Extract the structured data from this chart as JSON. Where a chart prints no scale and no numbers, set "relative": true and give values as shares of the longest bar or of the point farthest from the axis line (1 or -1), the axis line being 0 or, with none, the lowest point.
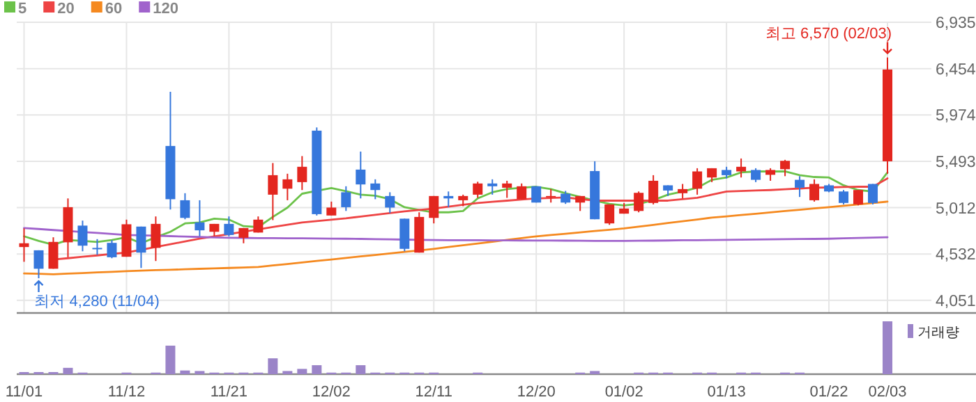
{
  "chart_data": [
    {
      "type": "candlestick",
      "categories": [
        "11/01",
        null,
        null,
        null,
        null,
        null,
        null,
        "11/12",
        null,
        null,
        null,
        null,
        null,
        null,
        "11/21",
        null,
        null,
        null,
        null,
        null,
        null,
        "12/02",
        null,
        null,
        null,
        null,
        null,
        null,
        "12/11",
        null,
        null,
        null,
        null,
        null,
        null,
        "12/20",
        null,
        null,
        null,
        null,
        null,
        "01/02",
        null,
        null,
        null,
        null,
        null,
        null,
        "01/13",
        null,
        null,
        null,
        null,
        null,
        null,
        "01/22",
        null,
        null,
        null,
        "02/03"
      ],
      "ohlc": [
        [
          4604,
          4797,
          4451,
          4643
        ],
        [
          4570,
          4570,
          4280,
          4379
        ],
        [
          4379,
          4705,
          4379,
          4657
        ],
        [
          4653,
          5108,
          4498,
          5017
        ],
        [
          4826,
          4878,
          4560,
          4618
        ],
        [
          4595,
          4686,
          4523,
          4585
        ],
        [
          4647,
          4676,
          4488,
          4498
        ],
        [
          4503,
          4888,
          4503,
          4840
        ],
        [
          4816,
          4816,
          4387,
          4546
        ],
        [
          4595,
          4921,
          4459,
          4844
        ],
        [
          5652,
          6214,
          4993,
          5100
        ],
        [
          5089,
          5162,
          4892,
          4906
        ],
        [
          4859,
          5089,
          4715,
          4777
        ],
        [
          4762,
          4844,
          4715,
          4844
        ],
        [
          4844,
          4921,
          4715,
          4729
        ],
        [
          4700,
          4801,
          4643,
          4801
        ],
        [
          4754,
          4921,
          4754,
          4888
        ],
        [
          5147,
          5475,
          4883,
          5349
        ],
        [
          5209,
          5364,
          5089,
          5306
        ],
        [
          5277,
          5547,
          5195,
          5436
        ],
        [
          5811,
          5844,
          4931,
          4945
        ],
        [
          4931,
          5075,
          4931,
          5013
        ],
        [
          5172,
          5234,
          4978,
          5017
        ],
        [
          5407,
          5594,
          5108,
          5253
        ],
        [
          5263,
          5306,
          5100,
          5195
        ],
        [
          5133,
          5172,
          4955,
          5013
        ],
        [
          4898,
          4898,
          4560,
          4585
        ],
        [
          4546,
          4964,
          4546,
          4916
        ],
        [
          4906,
          5133,
          4849,
          5133
        ],
        [
          5133,
          5180,
          5017,
          5108
        ],
        [
          5089,
          5147,
          5027,
          5133
        ],
        [
          5147,
          5281,
          5114,
          5263
        ],
        [
          5263,
          5306,
          5147,
          5234
        ],
        [
          5219,
          5291,
          5114,
          5263
        ],
        [
          5100,
          5263,
          5100,
          5234
        ],
        [
          5234,
          5234,
          5065,
          5065
        ],
        [
          5124,
          5205,
          5065,
          5133
        ],
        [
          5157,
          5186,
          5051,
          5065
        ],
        [
          5065,
          5133,
          4978,
          5133
        ],
        [
          5392,
          5493,
          4892,
          4892
        ],
        [
          4849,
          5046,
          4834,
          5046
        ],
        [
          4950,
          5061,
          4950,
          5003
        ],
        [
          4978,
          5180,
          4964,
          5166
        ],
        [
          5061,
          5349,
          5046,
          5291
        ],
        [
          5244,
          5244,
          5133,
          5190
        ],
        [
          5162,
          5258,
          5108,
          5205
        ],
        [
          5209,
          5421,
          5147,
          5388
        ],
        [
          5325,
          5421,
          5277,
          5421
        ],
        [
          5403,
          5436,
          5316,
          5349
        ],
        [
          5388,
          5522,
          5325,
          5436
        ],
        [
          5403,
          5421,
          5277,
          5301
        ],
        [
          5353,
          5421,
          5291,
          5403
        ],
        [
          5411,
          5508,
          5339,
          5498
        ],
        [
          5301,
          5339,
          5123,
          5219
        ],
        [
          5089,
          5306,
          5075,
          5258
        ],
        [
          5244,
          5258,
          5172,
          5180
        ],
        [
          5180,
          5195,
          5046,
          5061
        ],
        [
          5046,
          5195,
          5036,
          5195
        ],
        [
          5258,
          5258,
          5046,
          5061
        ],
        [
          5493,
          6570,
          5364,
          6445
        ]
      ],
      "colors": [
        "#e3261f",
        "#3677dc",
        "#e3261f",
        "#e3261f",
        "#3677dc",
        "#3677dc",
        "#3677dc",
        "#e3261f",
        "#3677dc",
        "#e3261f",
        "#3677dc",
        "#3677dc",
        "#3677dc",
        "#e3261f",
        "#3677dc",
        "#e3261f",
        "#e3261f",
        "#e3261f",
        "#e3261f",
        "#e3261f",
        "#3677dc",
        "#e3261f",
        "#3677dc",
        "#3677dc",
        "#3677dc",
        "#3677dc",
        "#3677dc",
        "#e3261f",
        "#e3261f",
        "#3677dc",
        "#e3261f",
        "#e3261f",
        "#3677dc",
        "#e3261f",
        "#e3261f",
        "#3677dc",
        "#e3261f",
        "#3677dc",
        "#e3261f",
        "#3677dc",
        "#e3261f",
        "#e3261f",
        "#e3261f",
        "#e3261f",
        "#3677dc",
        "#e3261f",
        "#e3261f",
        "#e3261f",
        "#3677dc",
        "#e3261f",
        "#3677dc",
        "#e3261f",
        "#e3261f",
        "#3677dc",
        "#e3261f",
        "#3677dc",
        "#3677dc",
        "#e3261f",
        "#3677dc",
        "#e3261f"
      ],
      "series": [
        {
          "name": "5",
          "type": "line",
          "color": "#6cc24a",
          "values": [
            4715,
            4667,
            4628,
            4676,
            4667,
            4657,
            4676,
            4705,
            4643,
            4705,
            4762,
            4849,
            4859,
            4898,
            4888,
            4820,
            4811,
            4916,
            5013,
            5157,
            5186,
            5215,
            5183,
            5147,
            5137,
            5100,
            5017,
            4989,
            4964,
            4964,
            4978,
            5108,
            5172,
            5205,
            5219,
            5229,
            5205,
            5162,
            5123,
            5085,
            5051,
            5036,
            5051,
            5089,
            5147,
            5180,
            5219,
            5301,
            5325,
            5378,
            5388,
            5388,
            5388,
            5349,
            5330,
            5325,
            5244,
            5195,
            5180,
            5378
          ]
        },
        {
          "name": "20",
          "type": "line",
          "color": "#ee4444",
          "values": [
            null,
            null,
            4474,
            4488,
            4503,
            4517,
            4532,
            4546,
            4575,
            4604,
            4633,
            4662,
            4690,
            4714,
            4738,
            4763,
            4787,
            4811,
            4835,
            4859,
            4873,
            4888,
            4902,
            4920,
            4938,
            4956,
            4974,
            4989,
            5003,
            5022,
            5042,
            5061,
            5073,
            5085,
            5097,
            5108,
            5113,
            5118,
            5101,
            5085,
            5085,
            5085,
            5085,
            5085,
            5085,
            5100,
            5114,
            5147,
            5180,
            5185,
            5190,
            5195,
            5203,
            5211,
            5219,
            5222,
            5226,
            5229,
            5229,
            5316
          ]
        },
        {
          "name": "60",
          "type": "line",
          "color": "#f5891f",
          "values": [
            4330,
            4326,
            4321,
            4328,
            4334,
            4341,
            4347,
            4354,
            4359,
            4364,
            4368,
            4373,
            4378,
            4383,
            4387,
            4392,
            4397,
            4413,
            4428,
            4444,
            4460,
            4475,
            4491,
            4507,
            4522,
            4538,
            4554,
            4569,
            4585,
            4604,
            4622,
            4641,
            4659,
            4678,
            4696,
            4715,
            4729,
            4742,
            4756,
            4770,
            4783,
            4797,
            4816,
            4834,
            4853,
            4872,
            4890,
            4909,
            4922,
            4936,
            4949,
            4963,
            4977,
            4990,
            5004,
            5017,
            5032,
            5046,
            5061,
            5075
          ]
        },
        {
          "name": "120",
          "type": "line",
          "color": "#a063cc",
          "values": [
            4801,
            4791,
            4780,
            4770,
            4760,
            4750,
            4739,
            4729,
            4725,
            4721,
            4717,
            4712,
            4708,
            4704,
            4700,
            4699,
            4697,
            4696,
            4695,
            4694,
            4692,
            4691,
            4690,
            4688,
            4685,
            4683,
            4681,
            4678,
            4676,
            4675,
            4675,
            4674,
            4673,
            4673,
            4672,
            4671,
            4671,
            4670,
            4669,
            4668,
            4668,
            4667,
            4669,
            4670,
            4672,
            4674,
            4675,
            4677,
            4679,
            4680,
            4682,
            4684,
            4685,
            4687,
            4688,
            4690,
            4694,
            4698,
            4701,
            4705
          ]
        }
      ],
      "ylim": [
        3920,
        6935
      ],
      "yticks": [
        {
          "value": 4051,
          "label": "4,051"
        },
        {
          "value": 4532,
          "label": "4,532"
        },
        {
          "value": 5012,
          "label": "5,012"
        },
        {
          "value": 5493,
          "label": "5,493"
        },
        {
          "value": 5974,
          "label": "5,974"
        },
        {
          "value": 6454,
          "label": "6,454"
        },
        {
          "value": 6935,
          "label": "6,935"
        }
      ],
      "annotations": [
        {
          "text": "최고 6,570 (02/03)",
          "x": "02/03",
          "y": 6570
        },
        {
          "text": "최저 4,280 (11/04)",
          "y": 4280
        }
      ],
      "grid": true,
      "legend": "top left"
    },
    {
      "type": "bar",
      "relative": true,
      "categories": [
        null,
        null,
        null,
        null,
        null,
        null,
        null,
        null,
        null,
        null,
        null,
        null,
        null,
        null,
        null,
        null,
        null,
        null,
        null,
        null,
        null,
        null,
        null,
        null,
        null,
        null,
        null,
        null,
        null,
        null,
        null,
        null,
        null,
        null,
        null,
        null,
        null,
        null,
        null,
        null,
        null,
        null,
        null,
        null,
        null,
        null,
        null,
        null,
        null,
        null,
        null,
        null,
        null,
        null,
        null,
        null,
        null,
        null,
        null,
        null
      ],
      "series": [
        {
          "name": "거래량",
          "color": "#9b84c8",
          "values": [
            0.04,
            0.04,
            0.04,
            0.12,
            0.03,
            0,
            0,
            0.03,
            0,
            0.03,
            0.54,
            0.07,
            0.06,
            0.03,
            0.03,
            0.03,
            0.03,
            0.3,
            0.06,
            0.1,
            0.17,
            0.03,
            0.03,
            0.17,
            0.03,
            0.03,
            0.03,
            0.03,
            0.03,
            0,
            0,
            0.03,
            0,
            0,
            0,
            0,
            0,
            0,
            0.03,
            0.06,
            0,
            0,
            0.03,
            0.03,
            0.03,
            0,
            0.03,
            0.03,
            0,
            0.03,
            0.03,
            0,
            0.03,
            0.03,
            0,
            0,
            0,
            0,
            0,
            1
          ]
        }
      ],
      "legend": "top right"
    }
  ]
}
